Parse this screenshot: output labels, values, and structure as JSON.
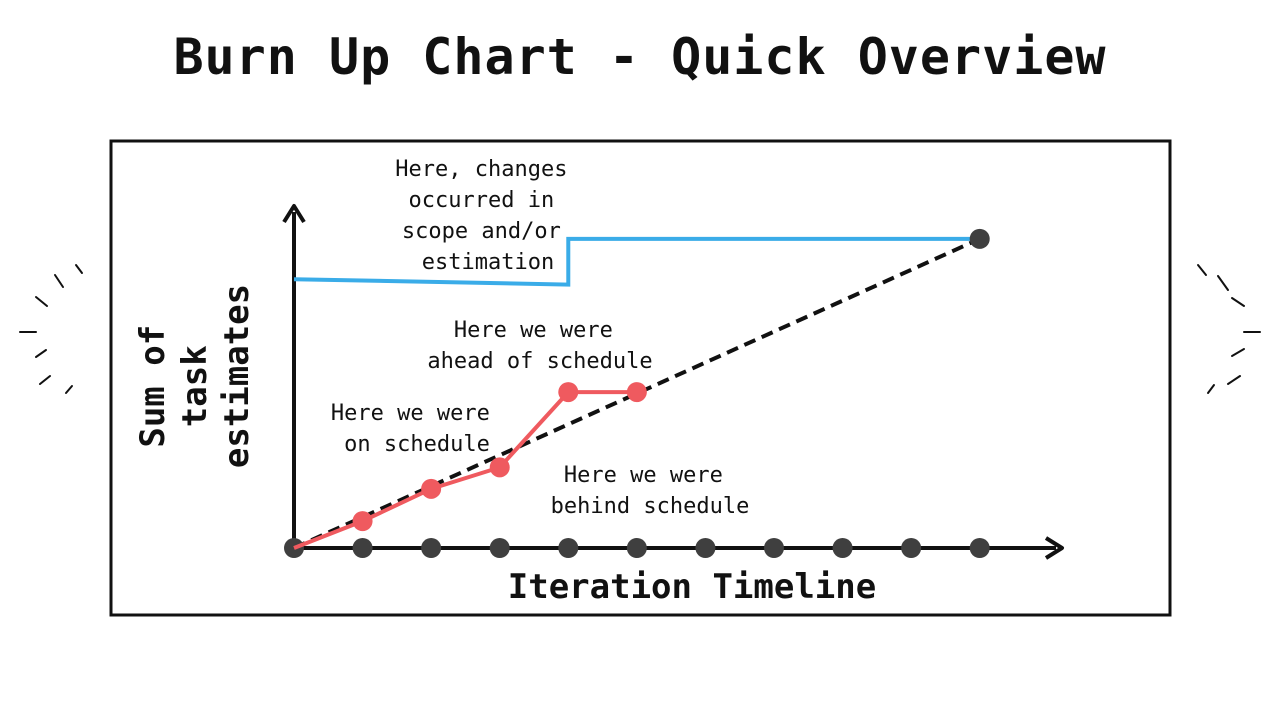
{
  "title": "Burn Up Chart - Quick Overview",
  "colors": {
    "scope_line": "#3aace8",
    "progress_line": "#ef5a5f",
    "ideal_line": "#111111",
    "timeline_dot": "#3f3f3f",
    "frame": "#111111"
  },
  "chart_data": {
    "type": "line",
    "title": "Burn Up Chart - Quick Overview",
    "xlabel": "Iteration Timeline",
    "ylabel_lines": [
      "Sum of",
      "task",
      "estimates"
    ],
    "x": [
      0,
      1,
      2,
      3,
      4,
      5,
      6,
      7,
      8,
      9,
      10
    ],
    "xlim": [
      0,
      11.2
    ],
    "ylim": [
      0,
      1.25
    ],
    "grid": false,
    "legend": "none",
    "series": [
      {
        "role": "scope",
        "style": "solid-step",
        "color": "#3aace8",
        "points": [
          [
            0,
            1.0
          ],
          [
            4,
            0.98
          ],
          [
            4,
            1.15
          ],
          [
            10,
            1.15
          ]
        ]
      },
      {
        "role": "ideal",
        "style": "dashed",
        "color": "#111111",
        "points": [
          [
            0,
            0
          ],
          [
            10,
            1.15
          ]
        ]
      },
      {
        "role": "actual",
        "style": "solid-markers",
        "color": "#ef5a5f",
        "points": [
          [
            0,
            0
          ],
          [
            1,
            0.1
          ],
          [
            2,
            0.22
          ],
          [
            3,
            0.3
          ],
          [
            4,
            0.58
          ],
          [
            5,
            0.58
          ]
        ]
      }
    ],
    "annotations": [
      {
        "lines": [
          "Here, changes",
          "occurred in",
          "scope and/or",
          "estimation"
        ]
      },
      {
        "lines": [
          "Here we were",
          "ahead of schedule"
        ]
      },
      {
        "lines": [
          "Here we were",
          "on schedule"
        ]
      },
      {
        "lines": [
          "Here we were",
          "behind schedule"
        ]
      }
    ]
  }
}
